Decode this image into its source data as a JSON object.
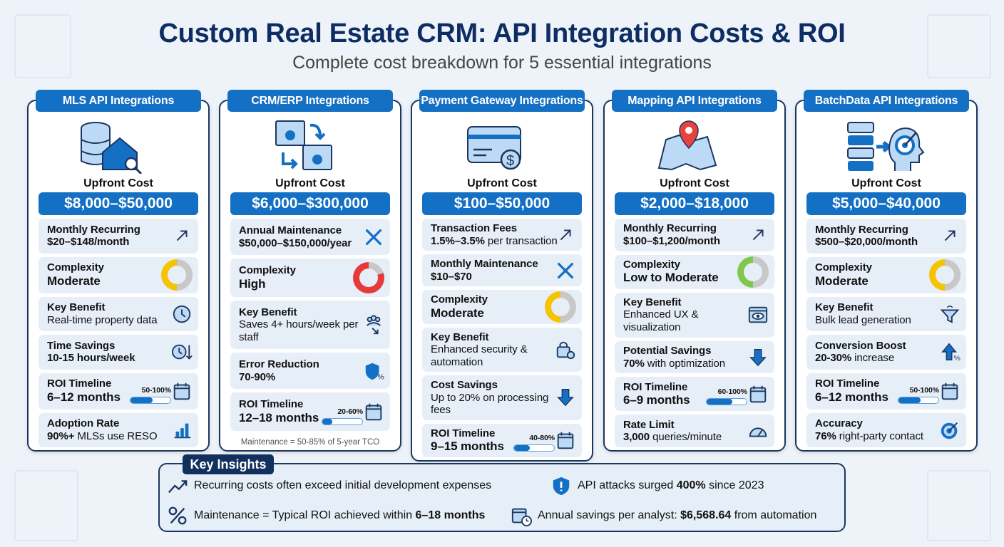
{
  "header": {
    "title": "Custom Real Estate CRM: API Integration Costs & ROI",
    "subtitle": "Complete cost breakdown for 5 essential integrations"
  },
  "colors": {
    "primary": "#1470c4",
    "navy": "#12305d",
    "moderate": "#f5c400",
    "high": "#e63a3a",
    "low": "#7ec850"
  },
  "cards": [
    {
      "title": "MLS API Integrations",
      "icon": "database-house-search-icon",
      "upfront_label": "Upfront Cost",
      "upfront": "$8,000–$50,000",
      "rows": [
        {
          "label": "Monthly Recurring",
          "bold": "$20–$148/month",
          "rest": "",
          "icon": "trend-up-arrow-icon"
        },
        {
          "label": "Complexity",
          "bold": "Moderate",
          "rest": "",
          "donut": {
            "color": "#f5c400",
            "level": 0.5
          },
          "big": true
        },
        {
          "label": "Key Benefit",
          "bold": "",
          "rest": "Real-time property data",
          "icon": "clock-icon"
        },
        {
          "label": "Time Savings",
          "bold": "10-15 hours/week",
          "rest": "",
          "icon": "clock-down-icon"
        },
        {
          "label": "ROI Timeline",
          "bold": "6–12 months",
          "rest": "",
          "icon": "calendar-icon",
          "progress": {
            "label": "50-100%",
            "fill": 0.55
          }
        },
        {
          "label": "Adoption Rate",
          "bold": "90%+",
          "rest": " MLSs use RESO",
          "icon": "bar-chart-icon"
        }
      ]
    },
    {
      "title": "CRM/ERP Integrations",
      "icon": "sync-windows-gear-icon",
      "upfront_label": "Upfront Cost",
      "upfront": "$6,000–$300,000",
      "rows": [
        {
          "label": "Annual Maintenance",
          "bold": "$50,000–$150,000/year",
          "rest": "",
          "icon": "tools-icon"
        },
        {
          "label": "Complexity",
          "bold": "High",
          "rest": "",
          "donut": {
            "color": "#e63a3a",
            "level": 0.8
          },
          "big": true
        },
        {
          "label": "Key Benefit",
          "bold": "",
          "rest": "Saves 4+ hours/week per staff",
          "icon": "team-down-icon"
        },
        {
          "label": "Error Reduction",
          "bold": "70-90%",
          "rest": "",
          "icon": "shield-percent-icon"
        },
        {
          "label": "ROI Timeline",
          "bold": "12–18 months",
          "rest": "",
          "icon": "calendar-icon",
          "progress": {
            "label": "20-60%",
            "fill": 0.25
          }
        }
      ],
      "note": "Maintenance = 50-85% of 5-year TCO"
    },
    {
      "title": "Payment Gateway Integrations",
      "icon": "credit-card-dollar-icon",
      "upfront_label": "Upfront Cost",
      "upfront": "$100–$50,000",
      "rows": [
        {
          "label": "Transaction Fees",
          "bold": "1.5%–3.5%",
          "rest": " per transaction",
          "icon": "trend-up-arrow-icon"
        },
        {
          "label": "Monthly Maintenance",
          "bold": "$10–$70",
          "rest": "",
          "icon": "tools-icon"
        },
        {
          "label": "Complexity",
          "bold": "Moderate",
          "rest": "",
          "donut": {
            "color": "#f5c400",
            "level": 0.5
          },
          "big": true
        },
        {
          "label": "Key Benefit",
          "bold": "",
          "rest": "Enhanced security & automation",
          "icon": "lock-gear-icon"
        },
        {
          "label": "Cost Savings",
          "bold": "",
          "rest": "Up to 20% on processing fees",
          "icon": "down-arrow-icon"
        },
        {
          "label": "ROI Timeline",
          "bold": "9–15 months",
          "rest": "",
          "icon": "calendar-icon",
          "progress": {
            "label": "40-80%",
            "fill": 0.4
          }
        }
      ]
    },
    {
      "title": "Mapping API Integrations",
      "icon": "map-pin-icon",
      "upfront_label": "Upfront Cost",
      "upfront": "$2,000–$18,000",
      "rows": [
        {
          "label": "Monthly Recurring",
          "bold": "$100–$1,200/month",
          "rest": "",
          "icon": "trend-up-arrow-icon"
        },
        {
          "label": "Complexity",
          "bold": "Low to Moderate",
          "rest": "",
          "donut": {
            "color": "#7ec850",
            "level": 0.5
          },
          "big": true
        },
        {
          "label": "Key Benefit",
          "bold": "",
          "rest": "Enhanced UX & visualization",
          "icon": "eye-window-icon"
        },
        {
          "label": "Potential Savings",
          "bold": "70%",
          "rest": " with optimization",
          "icon": "down-arrow-icon"
        },
        {
          "label": "ROI Timeline",
          "bold": "6–9 months",
          "rest": "",
          "icon": "calendar-icon",
          "progress": {
            "label": "60-100%",
            "fill": 0.65
          }
        },
        {
          "label": "Rate Limit",
          "bold": "3,000",
          "rest": " queries/minute",
          "icon": "speedometer-icon"
        }
      ]
    },
    {
      "title": "BatchData API Integrations",
      "icon": "server-to-target-head-icon",
      "upfront_label": "Upfront Cost",
      "upfront": "$5,000–$40,000",
      "rows": [
        {
          "label": "Monthly Recurring",
          "bold": "$500–$20,000/month",
          "rest": "",
          "icon": "trend-up-arrow-icon"
        },
        {
          "label": "Complexity",
          "bold": "Moderate",
          "rest": "",
          "donut": {
            "color": "#f5c400",
            "level": 0.5
          },
          "big": true
        },
        {
          "label": "Key Benefit",
          "bold": "",
          "rest": "Bulk lead generation",
          "icon": "funnel-icon"
        },
        {
          "label": "Conversion Boost",
          "bold": "20-30%",
          "rest": " increase",
          "icon": "up-arrow-percent-icon"
        },
        {
          "label": "ROI Timeline",
          "bold": "6–12 months",
          "rest": "",
          "icon": "calendar-icon",
          "progress": {
            "label": "50-100%",
            "fill": 0.55
          }
        },
        {
          "label": "Accuracy",
          "bold": "76%",
          "rest": " right-party contact",
          "icon": "target-icon"
        }
      ]
    }
  ],
  "insights": {
    "title": "Key Insights",
    "items": [
      {
        "icon": "trend-line-icon",
        "pre": "Recurring costs often exceed initial development expenses",
        "bold": "",
        "post": ""
      },
      {
        "icon": "shield-alert-icon",
        "pre": "API attacks surged ",
        "bold": "400%",
        "post": " since 2023"
      },
      {
        "icon": "percent-icon",
        "pre": "Maintenance = Typical ROI achieved within ",
        "bold": "6–18 months",
        "post": ""
      },
      {
        "icon": "calendar-clock-icon",
        "pre": "Annual savings per analyst: ",
        "bold": "$6,568.64",
        "post": " from automation"
      }
    ]
  }
}
